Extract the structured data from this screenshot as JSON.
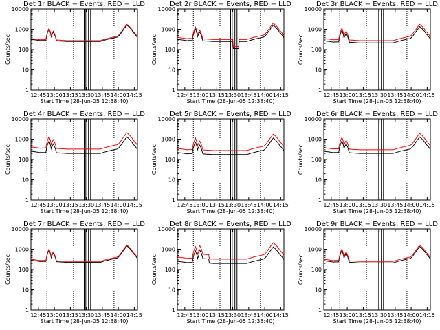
{
  "figure": {
    "background": "#ffffff",
    "event_color": "#000000",
    "lld_color": "#ff0000"
  },
  "chart_data": [
    {
      "type": "line",
      "title": "Det 1r BLACK = Events, RED = LLD",
      "xlabel": "Start Time (28-Jun-05 12:38:40)",
      "ylabel": "Counts/sec",
      "x_ticks": [
        "12:45",
        "13:00",
        "13:15",
        "13:30",
        "13:45",
        "14:00",
        "14:15"
      ],
      "y_ticks": [
        "1",
        "10",
        "100",
        "1000",
        "10000"
      ],
      "ylim": [
        1,
        10000
      ],
      "y_scale": "log",
      "x_range_min": [
        0,
        100
      ],
      "x_tick_min": [
        7,
        22,
        37,
        52,
        67,
        82,
        97
      ],
      "dotted_min": [
        15,
        40,
        78
      ],
      "marker_min": [
        50,
        51.5,
        54,
        56
      ],
      "series": [
        {
          "name": "Events",
          "color": "#000000",
          "profile": "base",
          "scale": 1.0
        },
        {
          "name": "LLD",
          "color": "#ff0000",
          "profile": "base",
          "scale": 1.1
        }
      ]
    },
    {
      "type": "line",
      "title": "Det 2r BLACK = Events, RED = LLD",
      "xlabel": "Start Time (28-Jun-05 12:38:40)",
      "ylabel": "Counts/sec",
      "x_ticks": [
        "12:45",
        "13:00",
        "13:15",
        "13:30",
        "13:45",
        "14:00",
        "14:15"
      ],
      "y_ticks": [
        "1",
        "10",
        "100",
        "1000",
        "10000"
      ],
      "ylim": [
        1,
        10000
      ],
      "y_scale": "log",
      "x_range_min": [
        0,
        100
      ],
      "x_tick_min": [
        7,
        22,
        37,
        52,
        67,
        82,
        97
      ],
      "dotted_min": [
        15,
        40,
        78
      ],
      "marker_min": [
        50,
        51.5,
        54,
        56
      ],
      "series": [
        {
          "name": "Events",
          "color": "#000000",
          "profile": "dip",
          "scale": 1.0
        },
        {
          "name": "LLD",
          "color": "#ff0000",
          "profile": "dip",
          "scale": 1.25
        }
      ]
    },
    {
      "type": "line",
      "title": "Det 3r BLACK = Events, RED = LLD",
      "xlabel": "Start Time (28-Jun-05 12:38:40)",
      "ylabel": "Counts/sec",
      "x_ticks": [
        "12:45",
        "13:00",
        "13:15",
        "13:30",
        "13:45",
        "14:00",
        "14:15"
      ],
      "y_ticks": [
        "1",
        "10",
        "100",
        "1000",
        "10000"
      ],
      "ylim": [
        1,
        10000
      ],
      "y_scale": "log",
      "x_range_min": [
        0,
        100
      ],
      "x_tick_min": [
        7,
        22,
        37,
        52,
        67,
        82,
        97
      ],
      "dotted_min": [
        15,
        40,
        78
      ],
      "marker_min": [
        50,
        51.5,
        54,
        56
      ],
      "series": [
        {
          "name": "Events",
          "color": "#000000",
          "profile": "base",
          "scale": 0.85
        },
        {
          "name": "LLD",
          "color": "#ff0000",
          "profile": "base",
          "scale": 1.1
        }
      ]
    },
    {
      "type": "line",
      "title": "Det 4r BLACK = Events, RED = LLD",
      "xlabel": "Start Time (28-Jun-05 12:38:40)",
      "ylabel": "Counts/sec",
      "x_ticks": [
        "12:45",
        "13:00",
        "13:15",
        "13:30",
        "13:45",
        "14:00",
        "14:15"
      ],
      "y_ticks": [
        "1",
        "10",
        "100",
        "1000",
        "10000"
      ],
      "ylim": [
        1,
        10000
      ],
      "y_scale": "log",
      "x_range_min": [
        0,
        100
      ],
      "x_tick_min": [
        7,
        22,
        37,
        52,
        67,
        82,
        97
      ],
      "dotted_min": [
        15,
        40,
        78
      ],
      "marker_min": [
        50,
        51.5,
        54,
        56
      ],
      "series": [
        {
          "name": "Events",
          "color": "#000000",
          "profile": "base",
          "scale": 0.8
        },
        {
          "name": "LLD",
          "color": "#ff0000",
          "profile": "base",
          "scale": 1.3
        }
      ]
    },
    {
      "type": "line",
      "title": "Det 5r BLACK = Events, RED = LLD",
      "xlabel": "Start Time (28-Jun-05 12:38:40)",
      "ylabel": "Counts/sec",
      "x_ticks": [
        "12:45",
        "13:00",
        "13:15",
        "13:30",
        "13:45",
        "14:00",
        "14:15"
      ],
      "y_ticks": [
        "1",
        "10",
        "100",
        "1000",
        "10000"
      ],
      "ylim": [
        1,
        10000
      ],
      "y_scale": "log",
      "x_range_min": [
        0,
        100
      ],
      "x_tick_min": [
        7,
        22,
        37,
        52,
        67,
        82,
        97
      ],
      "dotted_min": [
        15,
        40,
        78
      ],
      "marker_min": [
        50,
        51.5,
        54,
        56
      ],
      "series": [
        {
          "name": "Events",
          "color": "#000000",
          "profile": "base",
          "scale": 0.7
        },
        {
          "name": "LLD",
          "color": "#ff0000",
          "profile": "base",
          "scale": 1.1
        }
      ]
    },
    {
      "type": "line",
      "title": "Det 6r BLACK = Events, RED = LLD",
      "xlabel": "Start Time (28-Jun-05 12:38:40)",
      "ylabel": "Counts/sec",
      "x_ticks": [
        "12:45",
        "13:00",
        "13:15",
        "13:30",
        "13:45",
        "14:00",
        "14:15"
      ],
      "y_ticks": [
        "1",
        "10",
        "100",
        "1000",
        "10000"
      ],
      "ylim": [
        1,
        10000
      ],
      "y_scale": "log",
      "x_range_min": [
        0,
        100
      ],
      "x_tick_min": [
        7,
        22,
        37,
        52,
        67,
        82,
        97
      ],
      "dotted_min": [
        15,
        40,
        78
      ],
      "marker_min": [
        50,
        51.5,
        54,
        56
      ],
      "series": [
        {
          "name": "Events",
          "color": "#000000",
          "profile": "base",
          "scale": 0.8
        },
        {
          "name": "LLD",
          "color": "#ff0000",
          "profile": "base",
          "scale": 1.2
        }
      ]
    },
    {
      "type": "line",
      "title": "Det 7r BLACK = Events, RED = LLD",
      "xlabel": "Start Time (28-Jun-05 12:38:40)",
      "ylabel": "Counts/sec",
      "x_ticks": [
        "12:45",
        "13:00",
        "13:15",
        "13:30",
        "13:45",
        "14:00",
        "14:15"
      ],
      "y_ticks": [
        "1",
        "10",
        "100",
        "1000",
        "10000"
      ],
      "ylim": [
        1,
        10000
      ],
      "y_scale": "log",
      "x_range_min": [
        0,
        100
      ],
      "x_tick_min": [
        7,
        22,
        37,
        52,
        67,
        82,
        97
      ],
      "dotted_min": [
        15,
        40,
        78
      ],
      "marker_min": [
        50,
        51.5,
        54,
        56
      ],
      "series": [
        {
          "name": "Events",
          "color": "#000000",
          "profile": "base",
          "scale": 0.9
        },
        {
          "name": "LLD",
          "color": "#ff0000",
          "profile": "base",
          "scale": 1.0
        }
      ]
    },
    {
      "type": "line",
      "title": "Det 8r BLACK = Events, RED = LLD",
      "xlabel": "Start Time (28-Jun-05 12:38:40)",
      "ylabel": "Counts/sec",
      "x_ticks": [
        "12:45",
        "13:00",
        "13:15",
        "13:30",
        "13:45",
        "14:00",
        "14:15"
      ],
      "y_ticks": [
        "1",
        "10",
        "100",
        "1000",
        "10000"
      ],
      "ylim": [
        1,
        10000
      ],
      "y_scale": "log",
      "x_range_min": [
        0,
        100
      ],
      "x_tick_min": [
        7,
        22,
        37,
        52,
        67,
        82,
        97
      ],
      "dotted_min": [
        15,
        40,
        78
      ],
      "marker_min": [
        50,
        51.5,
        54,
        56
      ],
      "series": [
        {
          "name": "Events",
          "color": "#000000",
          "profile": "spiky",
          "scale": 0.8
        },
        {
          "name": "LLD",
          "color": "#ff0000",
          "profile": "spiky",
          "scale": 1.3
        }
      ]
    },
    {
      "type": "line",
      "title": "Det 9r BLACK = Events, RED = LLD",
      "xlabel": "Start Time (28-Jun-05 12:38:40)",
      "ylabel": "Counts/sec",
      "x_ticks": [
        "12:45",
        "13:00",
        "13:15",
        "13:30",
        "13:45",
        "14:00",
        "14:15"
      ],
      "y_ticks": [
        "1",
        "10",
        "100",
        "1000",
        "10000"
      ],
      "ylim": [
        1,
        10000
      ],
      "y_scale": "log",
      "x_range_min": [
        0,
        100
      ],
      "x_tick_min": [
        7,
        22,
        37,
        52,
        67,
        82,
        97
      ],
      "dotted_min": [
        15,
        40,
        78
      ],
      "marker_min": [
        50,
        51.5,
        54,
        56
      ],
      "series": [
        {
          "name": "Events",
          "color": "#000000",
          "profile": "base",
          "scale": 0.85
        },
        {
          "name": "LLD",
          "color": "#ff0000",
          "profile": "base",
          "scale": 1.0
        }
      ]
    }
  ]
}
